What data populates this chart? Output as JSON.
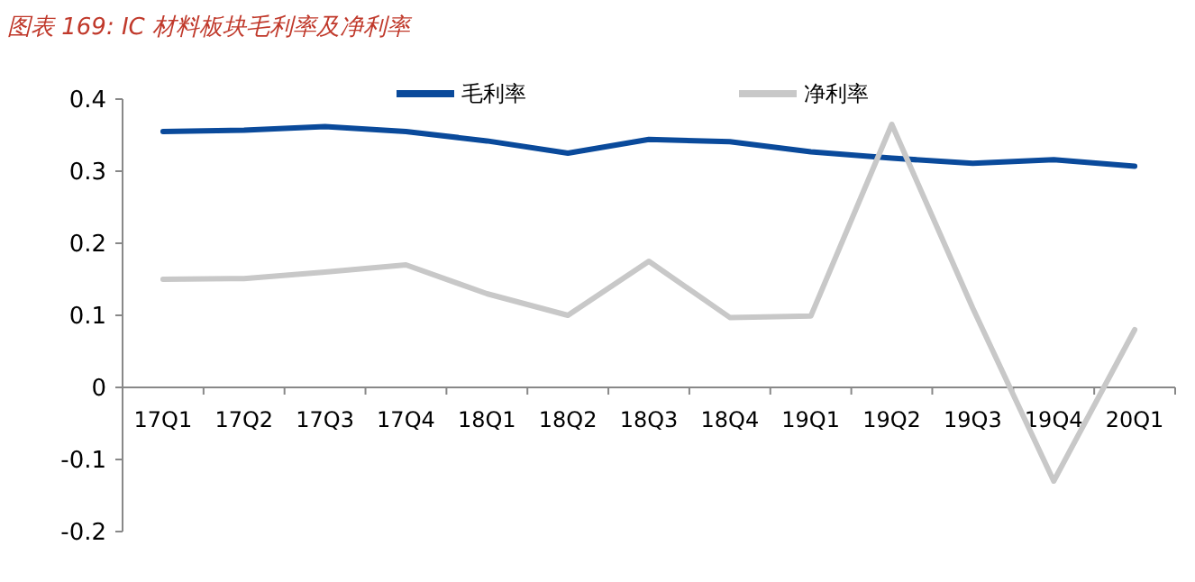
{
  "chart_data": {
    "type": "line",
    "title": "图表 169:  IC 材料板块毛利率及净利率",
    "categories": [
      "17Q1",
      "17Q2",
      "17Q3",
      "17Q4",
      "18Q1",
      "18Q2",
      "18Q3",
      "18Q4",
      "19Q1",
      "19Q2",
      "19Q3",
      "19Q4",
      "20Q1"
    ],
    "series": [
      {
        "name": "毛利率",
        "color": "#0a4a9b",
        "values": [
          0.355,
          0.357,
          0.362,
          0.355,
          0.342,
          0.325,
          0.344,
          0.341,
          0.327,
          0.318,
          0.311,
          0.316,
          0.307
        ]
      },
      {
        "name": "净利率",
        "color": "#c8c8c8",
        "values": [
          0.15,
          0.151,
          0.16,
          0.17,
          0.13,
          0.1,
          0.175,
          0.097,
          0.099,
          0.365,
          0.11,
          -0.13,
          0.08
        ]
      }
    ],
    "ylim": [
      -0.2,
      0.4
    ],
    "yticks": [
      -0.2,
      -0.1,
      0,
      0.1,
      0.2,
      0.3,
      0.4
    ],
    "legend": "top",
    "grid": false,
    "line_style": "solid",
    "marker": "none"
  }
}
